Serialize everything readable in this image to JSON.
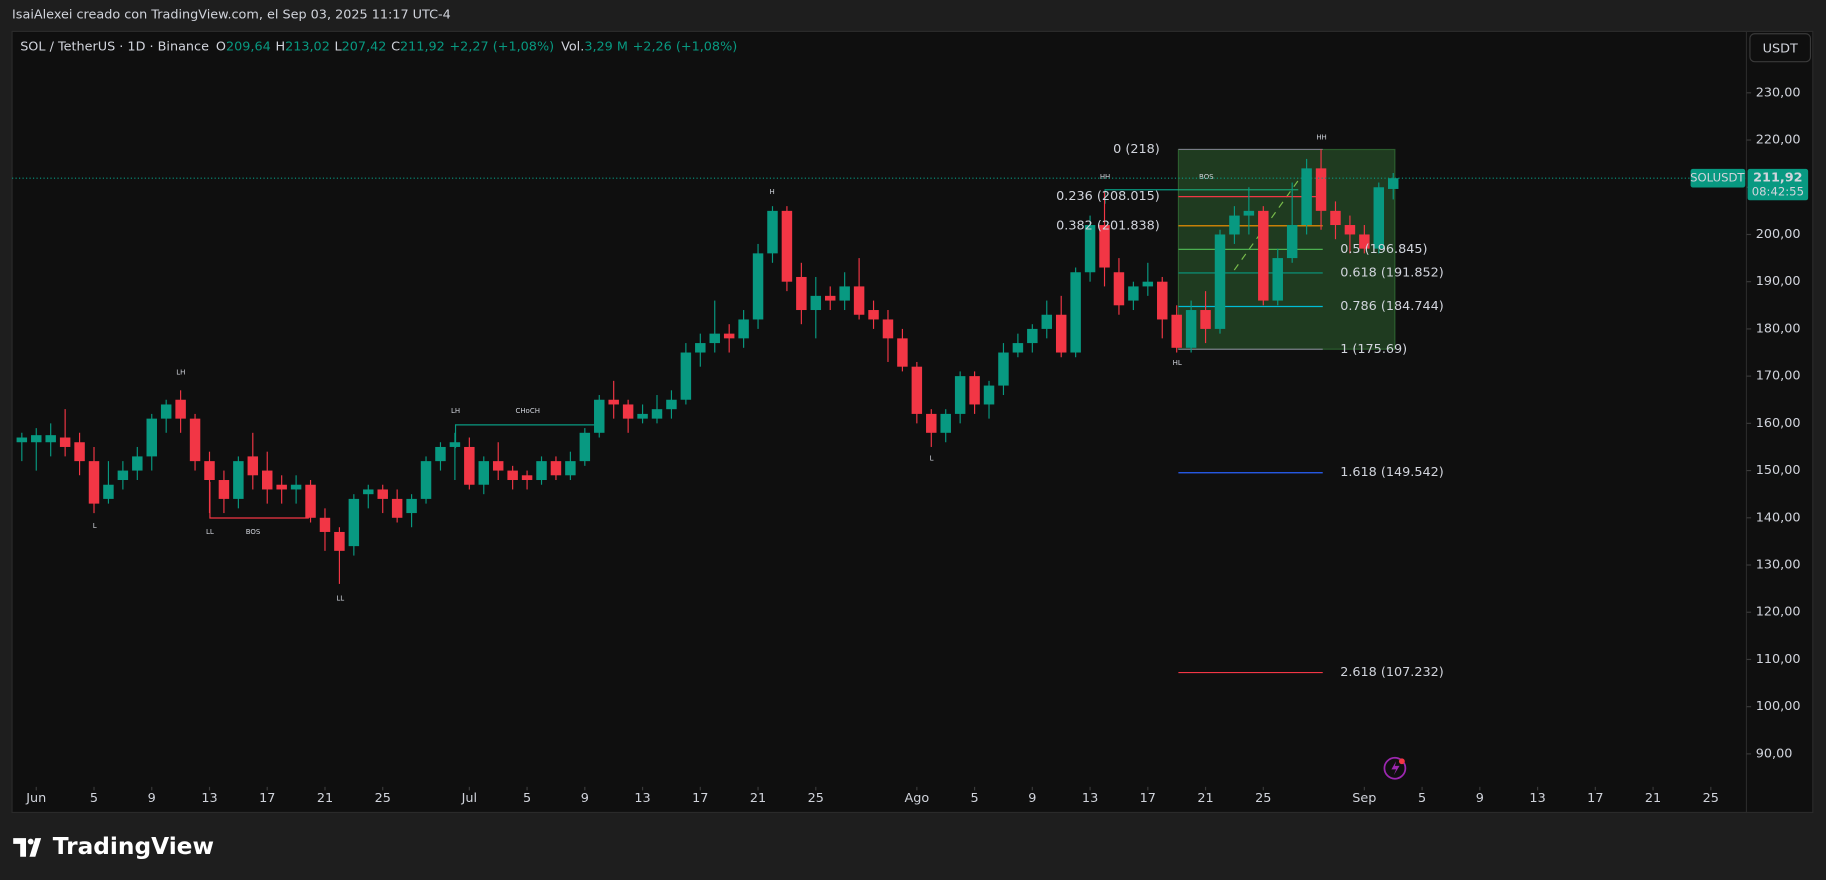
{
  "header": {
    "credit": "IsaiAlexei creado con TradingView.com, el Sep 03, 2025 11:17 UTC-4",
    "symbol": "SOL / TetherUS · 1D · Binance",
    "ohlc": [
      {
        "key": "O",
        "value": "209,64"
      },
      {
        "key": "H",
        "value": "213,02"
      },
      {
        "key": "L",
        "value": "207,42"
      },
      {
        "key": "C",
        "value": "211,92"
      }
    ],
    "change": "+2,27 (+1,08%)",
    "vol_label": "Vol.",
    "vol": "3,29 M",
    "vol_change": "+2,26 (+1,08%)",
    "currency": "USDT",
    "ticker": "SOLUSDT",
    "countdown": "08:42:55"
  },
  "footer": {
    "brand": "TradingView"
  },
  "chart_data": {
    "type": "candlestick",
    "up_color": "#089981",
    "down_color": "#f23645",
    "x": [
      "May 31",
      "Jun 1",
      "Jun 2",
      "Jun 3",
      "Jun 4",
      "Jun 5",
      "Jun 6",
      "Jun 7",
      "Jun 8",
      "Jun 9",
      "Jun 10",
      "Jun 11",
      "Jun 12",
      "Jun 13",
      "Jun 14",
      "Jun 15",
      "Jun 16",
      "Jun 17",
      "Jun 18",
      "Jun 19",
      "Jun 20",
      "Jun 21",
      "Jun 22",
      "Jun 23",
      "Jun 24",
      "Jun 25",
      "Jun 26",
      "Jun 27",
      "Jun 28",
      "Jun 29",
      "Jun 30",
      "Jul 1",
      "Jul 2",
      "Jul 3",
      "Jul 4",
      "Jul 5",
      "Jul 6",
      "Jul 7",
      "Jul 8",
      "Jul 9",
      "Jul 10",
      "Jul 11",
      "Jul 12",
      "Jul 13",
      "Jul 14",
      "Jul 15",
      "Jul 16",
      "Jul 17",
      "Jul 18",
      "Jul 19",
      "Jul 20",
      "Jul 21",
      "Jul 22",
      "Jul 23",
      "Jul 24",
      "Jul 25",
      "Jul 26",
      "Jul 27",
      "Jul 28",
      "Jul 29",
      "Jul 30",
      "Jul 31",
      "Ago 1",
      "Ago 2",
      "Ago 3",
      "Ago 4",
      "Ago 5",
      "Ago 6",
      "Ago 7",
      "Ago 8",
      "Ago 9",
      "Ago 10",
      "Ago 11",
      "Ago 12",
      "Ago 13",
      "Ago 14",
      "Ago 15",
      "Ago 16",
      "Ago 17",
      "Ago 18",
      "Ago 19",
      "Ago 20",
      "Ago 21",
      "Ago 22",
      "Ago 23",
      "Ago 24",
      "Ago 25",
      "Ago 26",
      "Ago 27",
      "Ago 28",
      "Ago 29",
      "Ago 30",
      "Ago 31",
      "Sep 1",
      "Sep 2",
      "Sep 3"
    ],
    "open": [
      156,
      156,
      156,
      157,
      156,
      152,
      144,
      148,
      150,
      153,
      161,
      165,
      161,
      152,
      148,
      144,
      153,
      150,
      147,
      146,
      147,
      140,
      137,
      134,
      145,
      146,
      144,
      141,
      144,
      152,
      155,
      155,
      147,
      152,
      150,
      149,
      148,
      152,
      149,
      152,
      158,
      165,
      164,
      161,
      161,
      163,
      165,
      175,
      177,
      179,
      178,
      182,
      196,
      205,
      191,
      184,
      187,
      186,
      189,
      184,
      182,
      178,
      172,
      162,
      158,
      162,
      170,
      164,
      168,
      175,
      177,
      180,
      183,
      175,
      192,
      202,
      192,
      186,
      189,
      190,
      183,
      176,
      184,
      180,
      200,
      204,
      205,
      186,
      195,
      202,
      214,
      205,
      202,
      200,
      197,
      209.64
    ],
    "high": [
      158,
      159,
      160,
      163,
      158,
      155,
      152,
      152,
      155,
      162,
      165,
      167,
      162,
      154,
      150,
      153,
      158,
      154,
      149,
      149,
      148,
      142,
      138,
      145,
      147,
      147,
      146,
      145,
      153,
      156,
      158,
      157,
      153,
      156,
      151,
      150,
      153,
      153,
      154,
      159,
      166,
      169,
      165,
      164,
      166,
      167,
      177,
      179,
      186,
      181,
      184,
      198,
      206,
      206,
      194,
      191,
      189,
      192,
      195,
      186,
      184,
      180,
      173,
      163,
      163,
      171,
      171,
      169,
      177,
      179,
      181,
      186,
      187,
      193,
      204,
      209,
      195,
      190,
      194,
      191,
      185,
      186,
      188,
      201,
      206,
      210,
      206,
      197,
      211,
      216,
      218,
      207,
      204,
      202,
      211,
      213.02
    ],
    "low": [
      152,
      150,
      153,
      153,
      149,
      141,
      143,
      146,
      148,
      150,
      158,
      158,
      150,
      141,
      141,
      142,
      146,
      143,
      143,
      143,
      139,
      133,
      126,
      132,
      142,
      141,
      139,
      138,
      143,
      150,
      148,
      146,
      145,
      148,
      146,
      146,
      147,
      148,
      148,
      151,
      157,
      161,
      158,
      160,
      160,
      161,
      164,
      172,
      175,
      175,
      176,
      180,
      194,
      188,
      181,
      178,
      184,
      184,
      182,
      180,
      173,
      171,
      160,
      155,
      156,
      160,
      162,
      161,
      166,
      174,
      175,
      178,
      174,
      174,
      190,
      189,
      183,
      184,
      187,
      178,
      175,
      175,
      177,
      179,
      198,
      200,
      185,
      185,
      194,
      200,
      201,
      199,
      196,
      196,
      196,
      207.42
    ],
    "close": [
      157,
      157.5,
      157.5,
      155,
      152,
      143,
      147,
      150,
      153,
      161,
      164,
      161,
      152,
      148,
      144,
      152,
      149,
      146,
      146,
      147,
      140,
      137,
      133,
      144,
      146,
      144,
      140,
      144,
      152,
      155,
      156,
      147,
      152,
      150,
      148,
      148,
      152,
      149,
      152,
      158,
      165,
      164,
      161,
      162,
      163,
      165,
      175,
      177,
      179,
      178,
      182,
      196,
      205,
      190,
      184,
      187,
      186,
      189,
      183,
      182,
      178,
      172,
      162,
      158,
      162,
      170,
      164,
      168,
      175,
      177,
      180,
      183,
      175,
      192,
      202,
      193,
      185,
      189,
      190,
      182,
      176,
      184,
      180,
      200,
      204,
      205,
      186,
      195,
      202,
      214,
      205,
      202,
      200,
      197,
      210,
      211.92
    ],
    "xlim": [
      "May 30",
      "Sep 29"
    ],
    "xticks": [
      {
        "value": "Jun 1",
        "label": "Jun"
      },
      {
        "value": "Jun 5",
        "label": "5"
      },
      {
        "value": "Jun 9",
        "label": "9"
      },
      {
        "value": "Jun 13",
        "label": "13"
      },
      {
        "value": "Jun 17",
        "label": "17"
      },
      {
        "value": "Jun 21",
        "label": "21"
      },
      {
        "value": "Jun 25",
        "label": "25"
      },
      {
        "value": "Jul 1",
        "label": "Jul"
      },
      {
        "value": "Jul 5",
        "label": "5"
      },
      {
        "value": "Jul 9",
        "label": "9"
      },
      {
        "value": "Jul 13",
        "label": "13"
      },
      {
        "value": "Jul 17",
        "label": "17"
      },
      {
        "value": "Jul 21",
        "label": "21"
      },
      {
        "value": "Jul 25",
        "label": "25"
      },
      {
        "value": "Ago 1",
        "label": "Ago"
      },
      {
        "value": "Ago 5",
        "label": "5"
      },
      {
        "value": "Ago 9",
        "label": "9"
      },
      {
        "value": "Ago 13",
        "label": "13"
      },
      {
        "value": "Ago 17",
        "label": "17"
      },
      {
        "value": "Ago 21",
        "label": "21"
      },
      {
        "value": "Ago 25",
        "label": "25"
      },
      {
        "value": "Sep 1",
        "label": "Sep"
      },
      {
        "value": "Sep 5",
        "label": "5"
      },
      {
        "value": "Sep 9",
        "label": "9"
      },
      {
        "value": "Sep 13",
        "label": "13"
      },
      {
        "value": "Sep 17",
        "label": "17"
      },
      {
        "value": "Sep 21",
        "label": "21"
      },
      {
        "value": "Sep 25",
        "label": "25"
      }
    ],
    "ylim": [
      84,
      243
    ],
    "yticks": [
      {
        "value": 90,
        "label": "90,00"
      },
      {
        "value": 100,
        "label": "100,00"
      },
      {
        "value": 110,
        "label": "110,00"
      },
      {
        "value": 120,
        "label": "120,00"
      },
      {
        "value": 130,
        "label": "130,00"
      },
      {
        "value": 140,
        "label": "140,00"
      },
      {
        "value": 150,
        "label": "150,00"
      },
      {
        "value": 160,
        "label": "160,00"
      },
      {
        "value": 170,
        "label": "170,00"
      },
      {
        "value": 180,
        "label": "180,00"
      },
      {
        "value": 190,
        "label": "190,00"
      },
      {
        "value": 200,
        "label": "200,00"
      },
      {
        "value": 210,
        "label": "210,00"
      },
      {
        "value": 220,
        "label": "220,00"
      },
      {
        "value": 230,
        "label": "230,00"
      }
    ],
    "last_price": {
      "value": 211.92,
      "label": "211,92"
    },
    "fib_levels": [
      {
        "label": "0 (218)",
        "value": 218,
        "color": "#787b86"
      },
      {
        "label": "0.236 (208.015)",
        "value": 208.015,
        "color": "#f23645"
      },
      {
        "label": "0.382 (201.838)",
        "value": 201.838,
        "color": "#ff9800"
      },
      {
        "label": "0.5 (196.845)",
        "value": 196.845,
        "color": "#4caf50"
      },
      {
        "label": "0.618 (191.852)",
        "value": 191.852,
        "color": "#089981"
      },
      {
        "label": "0.786 (184.744)",
        "value": 184.744,
        "color": "#00bcd4"
      },
      {
        "label": "1 (175.69)",
        "value": 175.69,
        "color": "#787b86"
      },
      {
        "label": "1.618 (149.542)",
        "value": 149.542,
        "color": "#2962ff"
      },
      {
        "label": "2.618 (107.232)",
        "value": 107.232,
        "color": "#f23645"
      }
    ],
    "annotations": [
      {
        "text": "LH",
        "color": "#f23645"
      },
      {
        "text": "L",
        "color": "#089981"
      },
      {
        "text": "LL",
        "color": "#089981"
      },
      {
        "text": "BOS",
        "color": "#f23645"
      },
      {
        "text": "LL",
        "color": "#089981"
      },
      {
        "text": "LH",
        "color": "#f23645"
      },
      {
        "text": "CHoCH",
        "color": "#089981"
      },
      {
        "text": "H",
        "color": "#f23645"
      },
      {
        "text": "HH",
        "color": "#f23645"
      },
      {
        "text": "BOS",
        "color": "#089981"
      },
      {
        "text": "L",
        "color": "#089981"
      },
      {
        "text": "HL",
        "color": "#089981"
      },
      {
        "text": "HH",
        "color": "#f23645"
      }
    ]
  }
}
